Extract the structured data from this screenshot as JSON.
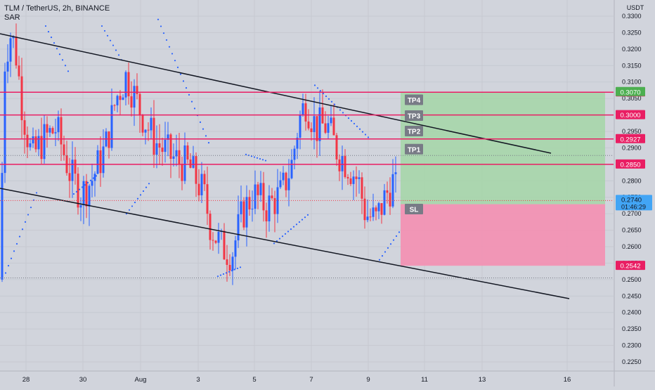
{
  "header": {
    "symbol": "TLM / TetherUS, 2h, BINANCE",
    "indicator": "SAR"
  },
  "axis": {
    "currency": "USDT",
    "y_ticks": [
      "0.3300",
      "0.3250",
      "0.3200",
      "0.3150",
      "0.3100",
      "0.3050",
      "0.3000",
      "0.2950",
      "0.2900",
      "0.2850",
      "0.2800",
      "0.2750",
      "0.2700",
      "0.2650",
      "0.2600",
      "0.2550",
      "0.2500",
      "0.2450",
      "0.2400",
      "0.2350",
      "0.2300",
      "0.2250"
    ],
    "x_ticks": [
      "28",
      "30",
      "Aug",
      "3",
      "5",
      "7",
      "9",
      "11",
      "13",
      "16"
    ]
  },
  "chart_data": {
    "type": "candlestick",
    "pair": "TLM / TetherUS",
    "interval": "2h",
    "exchange": "BINANCE",
    "indicator": "SAR",
    "ylim": [
      0.2215,
      0.3315
    ],
    "current_price": 0.274,
    "countdown": "01:46:29",
    "levels": [
      {
        "label": "TP4",
        "value": 0.3069,
        "color": "#e91e63"
      },
      {
        "label": "TP3",
        "value": 0.3,
        "color": "#e91e63"
      },
      {
        "label": "TP2",
        "value": 0.2927,
        "color": "#e91e63"
      },
      {
        "label": "TP1",
        "value": 0.285,
        "color": "#e91e63"
      },
      {
        "label": "SL",
        "value": 0.2542,
        "color": "#e91e63"
      }
    ],
    "price_tags": [
      {
        "value": 0.307,
        "text": "0.3070",
        "color": "#4caf50"
      },
      {
        "value": 0.2729,
        "text": "0.2729",
        "color": "#131722"
      }
    ],
    "position": {
      "entry": 0.2729,
      "target": 0.307,
      "stop": 0.2542
    },
    "zone_labels": [
      "TP4",
      "TP3",
      "TP2",
      "TP1",
      "SL"
    ],
    "colors": {
      "up": "#2962ff",
      "down": "#f23645",
      "profit": "#a5d6a7",
      "loss": "#f48fb1",
      "sar": "#2962ff",
      "trend": "#131722"
    },
    "channel_lines": "2 descending parallel trendlines"
  }
}
